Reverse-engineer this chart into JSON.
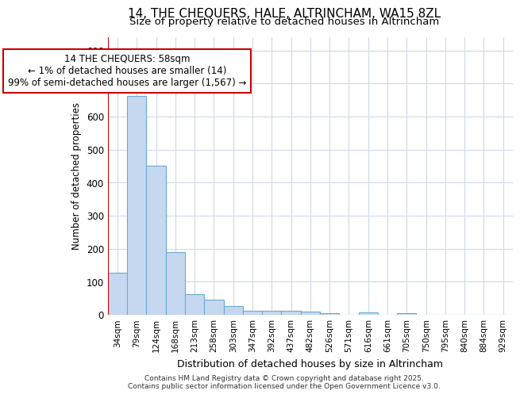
{
  "title_line1": "14, THE CHEQUERS, HALE, ALTRINCHAM, WA15 8ZL",
  "title_line2": "Size of property relative to detached houses in Altrincham",
  "xlabel": "Distribution of detached houses by size in Altrincham",
  "ylabel": "Number of detached properties",
  "footer_line1": "Contains HM Land Registry data © Crown copyright and database right 2025.",
  "footer_line2": "Contains public sector information licensed under the Open Government Licence v3.0.",
  "annotation_line1": "14 THE CHEQUERS: 58sqm",
  "annotation_line2": "← 1% of detached houses are smaller (14)",
  "annotation_line3": "99% of semi-detached houses are larger (1,567) →",
  "bar_color": "#c5d8f0",
  "bar_edge_color": "#6aaad4",
  "categories": [
    "34sqm",
    "79sqm",
    "124sqm",
    "168sqm",
    "213sqm",
    "258sqm",
    "303sqm",
    "347sqm",
    "392sqm",
    "437sqm",
    "482sqm",
    "526sqm",
    "571sqm",
    "616sqm",
    "661sqm",
    "705sqm",
    "750sqm",
    "795sqm",
    "840sqm",
    "884sqm",
    "929sqm"
  ],
  "values": [
    128,
    662,
    452,
    190,
    62,
    45,
    27,
    13,
    13,
    11,
    10,
    5,
    0,
    7,
    0,
    6,
    0,
    0,
    0,
    0,
    0
  ],
  "ylim": [
    0,
    840
  ],
  "yticks": [
    0,
    100,
    200,
    300,
    400,
    500,
    600,
    700,
    800
  ],
  "background_color": "#ffffff",
  "plot_bg_color": "#ffffff",
  "grid_color": "#d0d8e8",
  "annotation_box_bg": "#ffffff",
  "annotation_box_edge": "#cc0000",
  "red_line_color": "#cc0000",
  "red_line_x": -0.5
}
